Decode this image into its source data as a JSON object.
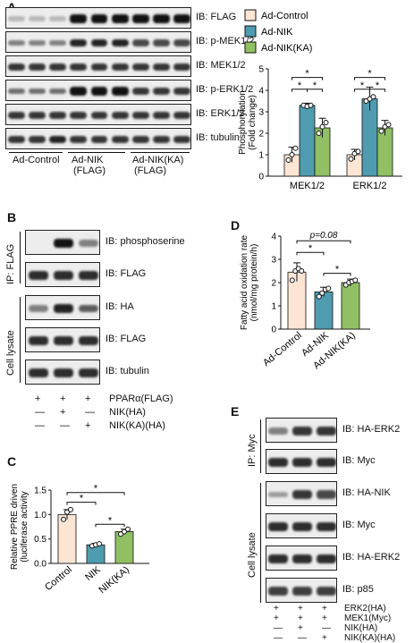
{
  "panels": {
    "A": {
      "letter": "A",
      "ib_labels": [
        "IB: FLAG",
        "IB: p-MEK1/2",
        "IB: MEK1/2",
        "IB: p-ERK1/2",
        "IB: ERK1/2",
        "IB: tubulin"
      ],
      "groups": [
        "Ad-Control",
        "Ad-NIK",
        "(FLAG)",
        "Ad-NIK(KA)",
        "(FLAG)"
      ],
      "band_intensity": [
        [
          0.1,
          0.1,
          0.1,
          1,
          1,
          1,
          1,
          1,
          1
        ],
        [
          0.4,
          0.4,
          0.4,
          0.9,
          0.9,
          0.9,
          0.7,
          0.7,
          0.7
        ],
        [
          0.8,
          0.8,
          0.8,
          0.8,
          0.8,
          0.8,
          0.8,
          0.8,
          0.8
        ],
        [
          0.5,
          0.5,
          0.5,
          1,
          1,
          1,
          0.8,
          0.8,
          0.8
        ],
        [
          0.8,
          0.8,
          0.8,
          0.8,
          0.8,
          0.8,
          0.8,
          0.8,
          0.8
        ],
        [
          0.8,
          0.8,
          0.9,
          0.8,
          0.8,
          0.8,
          0.8,
          0.8,
          0.8
        ]
      ]
    },
    "B": {
      "letter": "B",
      "ib_labels": [
        "IB: phosphoserine",
        "IB: FLAG",
        "IB: HA",
        "IB: FLAG",
        "IB: tubulin"
      ],
      "side_labels": [
        "IP: FLAG",
        "Cell lysate"
      ],
      "conditions": [
        {
          "name": "PPARα(FLAG)",
          "marks": [
            "+",
            "+",
            "+"
          ]
        },
        {
          "name": "NIK(HA)",
          "marks": [
            "—",
            "+",
            "—"
          ]
        },
        {
          "name": "NIK(KA)(HA)",
          "marks": [
            "—",
            "—",
            "+"
          ]
        }
      ],
      "band_intensity": [
        [
          0.05,
          1,
          0.4
        ],
        [
          0.85,
          0.85,
          0.85
        ],
        [
          0.4,
          0.9,
          0.6
        ],
        [
          0.85,
          0.85,
          0.85
        ],
        [
          0.85,
          0.85,
          0.85
        ]
      ]
    },
    "E": {
      "letter": "E",
      "ib_labels": [
        "IB: HA-ERK2",
        "IB: Myc",
        "IB: HA-NIK",
        "IB: Myc",
        "IB: HA-ERK2",
        "IB: p85"
      ],
      "side_labels": [
        "IP: Myc",
        "Cell lysate"
      ],
      "conditions": [
        {
          "name": "ERK2(HA)",
          "marks": [
            "+",
            "+",
            "+"
          ]
        },
        {
          "name": "MEK1(Myc)",
          "marks": [
            "+",
            "+",
            "+"
          ]
        },
        {
          "name": "NIK(HA)",
          "marks": [
            "—",
            "+",
            "—"
          ]
        },
        {
          "name": "NIK(KA)(HA)",
          "marks": [
            "—",
            "—",
            "+"
          ]
        }
      ],
      "band_intensity": [
        [
          0.4,
          0.8,
          0.8
        ],
        [
          0.85,
          0.85,
          0.85
        ],
        [
          0.25,
          0.8,
          0.7
        ],
        [
          0.85,
          0.85,
          0.85
        ],
        [
          0.85,
          0.85,
          0.85
        ],
        [
          0.75,
          0.75,
          0.75
        ]
      ]
    },
    "C_letter": "C",
    "D_letter": "D"
  },
  "chart_data": [
    {
      "type": "bar",
      "panel": "A",
      "categories": [
        "MEK1/2",
        "ERK1/2"
      ],
      "series": [
        {
          "name": "Ad-Control",
          "values": [
            1.0,
            1.0
          ],
          "errors": [
            0.35,
            0.25
          ],
          "points": [
            [
              0.75,
              1.0,
              1.3
            ],
            [
              0.8,
              1.05,
              1.15
            ]
          ]
        },
        {
          "name": "Ad-NIK",
          "values": [
            3.3,
            3.6
          ],
          "errors": [
            0.1,
            0.55
          ],
          "points": [
            [
              3.3,
              3.25,
              3.3
            ],
            [
              3.5,
              3.6,
              3.7
            ]
          ]
        },
        {
          "name": "Ad-NIK(KA)",
          "values": [
            2.25,
            2.25
          ],
          "errors": [
            0.45,
            0.35
          ],
          "points": [
            [
              2.0,
              2.3,
              2.5
            ],
            [
              2.1,
              2.3,
              2.4
            ]
          ]
        }
      ],
      "colors": [
        "#fde5d4",
        "#4f9bb0",
        "#90c063"
      ],
      "ylabel": "Phosphorylation (Fold change)",
      "ylim": [
        0,
        5
      ],
      "yticks": [
        "0",
        "1",
        "2",
        "3",
        "4",
        "5"
      ],
      "significance": [
        "*",
        "*",
        "*",
        "*",
        "*",
        "*"
      ],
      "legend_placement": "top"
    },
    {
      "type": "bar",
      "panel": "C",
      "categories": [
        "Control",
        "NIK",
        "NIK(KA)"
      ],
      "values": [
        1.0,
        0.38,
        0.65
      ],
      "errors": [
        0.1,
        0.03,
        0.05
      ],
      "points": [
        [
          0.9,
          1.05,
          1.1
        ],
        [
          0.36,
          0.38,
          0.4
        ],
        [
          0.6,
          0.65,
          0.7
        ]
      ],
      "colors": [
        "#fde5d4",
        "#4f9bb0",
        "#90c063"
      ],
      "ylabel": "Relative PPRE driven luciferase activity",
      "ylim": [
        0,
        1.5
      ],
      "yticks": [
        "0.0",
        "0.5",
        "1.0",
        "1.5"
      ],
      "significance": [
        "*",
        "*",
        "*"
      ]
    },
    {
      "type": "bar",
      "panel": "D",
      "categories": [
        "Ad-Control",
        "Ad-NIK",
        "Ad-NIK(KA)"
      ],
      "values": [
        2.45,
        1.6,
        2.0
      ],
      "errors": [
        0.4,
        0.2,
        0.15
      ],
      "points": [
        [
          2.1,
          2.5,
          2.6,
          2.5
        ],
        [
          1.4,
          1.55,
          1.7,
          1.75
        ],
        [
          1.9,
          2.0,
          2.05,
          2.1
        ]
      ],
      "colors": [
        "#fde5d4",
        "#4f9bb0",
        "#90c063"
      ],
      "ylabel": "Fatty acid oxidation rate (nmol/mg protein/h)",
      "ylim": [
        0,
        4
      ],
      "yticks": [
        "0",
        "1",
        "2",
        "3",
        "4"
      ],
      "significance": [
        "*",
        "*"
      ],
      "pvalue_label": "p=0.08"
    }
  ]
}
